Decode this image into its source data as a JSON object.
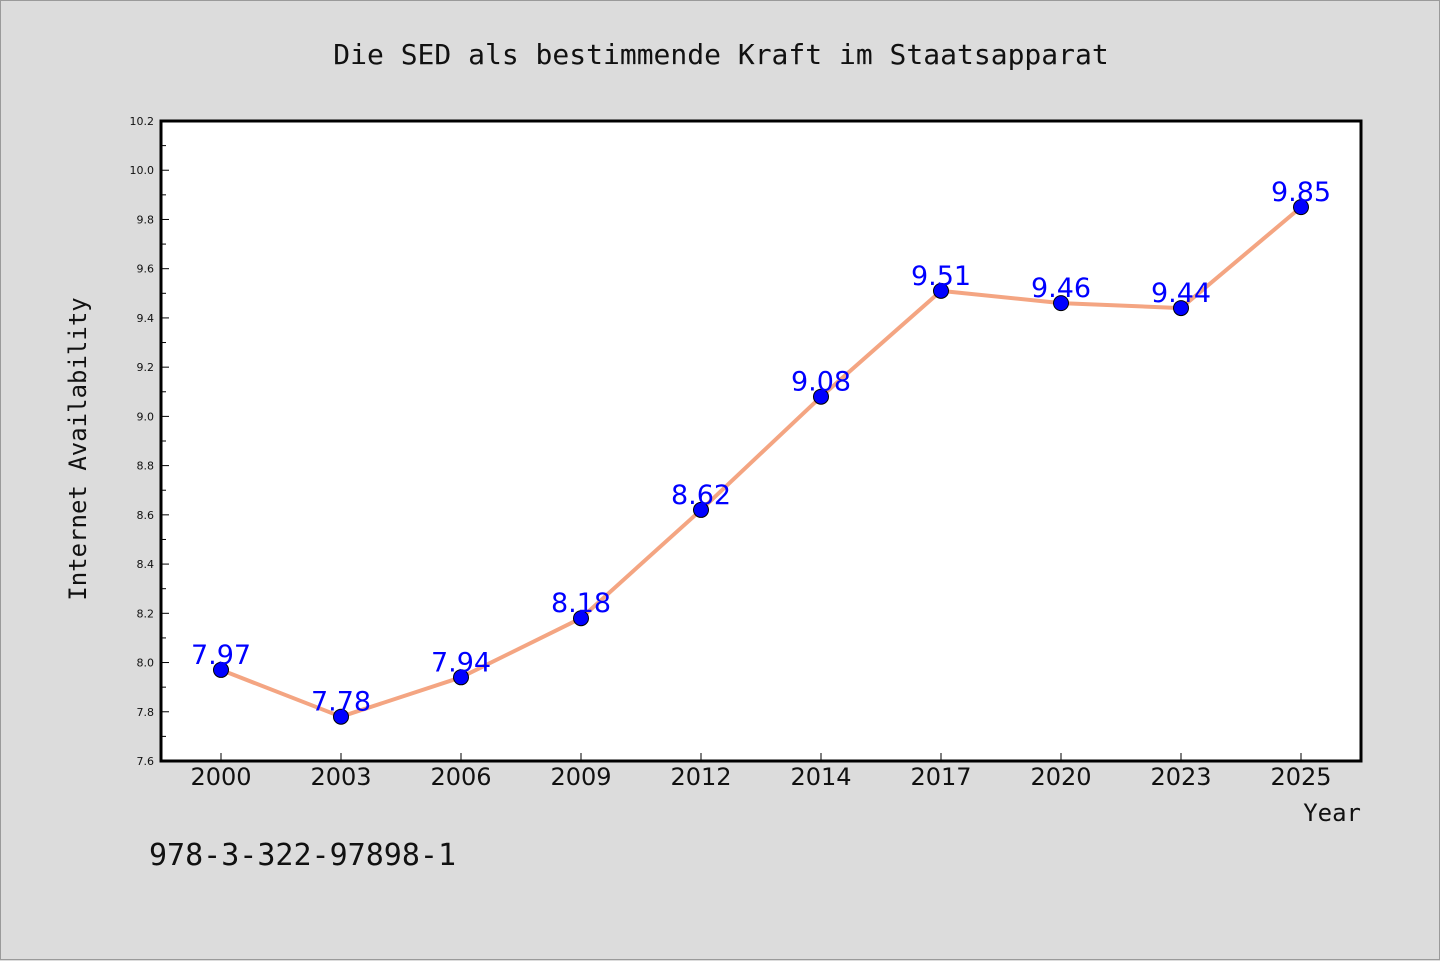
{
  "chart_data": {
    "type": "line",
    "title": "Die SED als bestimmende Kraft im Staatsapparat",
    "xlabel": "Year",
    "ylabel": "Internet Availability",
    "categories": [
      "2000",
      "2003",
      "2006",
      "2009",
      "2012",
      "2014",
      "2017",
      "2020",
      "2023",
      "2025"
    ],
    "values": [
      7.97,
      7.78,
      7.94,
      8.18,
      8.62,
      9.08,
      9.51,
      9.46,
      9.44,
      9.85
    ],
    "data_labels": [
      "7.97",
      "7.78",
      "7.94",
      "8.18",
      "8.62",
      "9.08",
      "9.51",
      "9.46",
      "9.44",
      "9.85"
    ],
    "ylim": [
      7.6,
      10.2
    ],
    "yticks": [
      "7.6",
      "7.8",
      "8.0",
      "8.2",
      "8.4",
      "8.6",
      "8.8",
      "9.0",
      "9.2",
      "9.4",
      "9.6",
      "9.8",
      "10.0",
      "10.2"
    ],
    "grid": false,
    "legend": "none",
    "colors": {
      "line": "#f4a582",
      "marker": "#0000ff",
      "data_label": "#0000ff",
      "plot_background": "#ffffff",
      "figure_background": "#dcdcdc"
    }
  },
  "annotation": "978-3-322-97898-1"
}
